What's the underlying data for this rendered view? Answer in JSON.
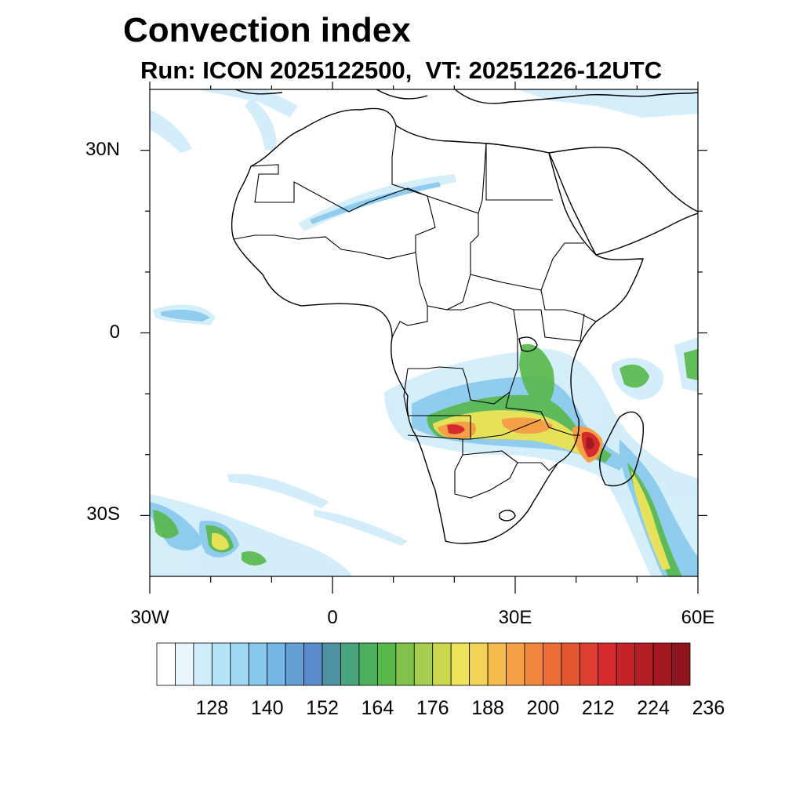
{
  "title": "Convection index",
  "subtitle": "Run: ICON 2025122500,  VT: 20251226-12UTC",
  "map": {
    "lon_range": [
      -30,
      60
    ],
    "lat_range": [
      -40,
      40
    ],
    "lat_ticks": [
      {
        "value": 30,
        "label": "30N"
      },
      {
        "value": 0,
        "label": "0"
      },
      {
        "value": -30,
        "label": "30S"
      }
    ],
    "lon_ticks": [
      {
        "value": -30,
        "label": "30W"
      },
      {
        "value": 0,
        "label": "0"
      },
      {
        "value": 30,
        "label": "30E"
      },
      {
        "value": 60,
        "label": "60E"
      }
    ],
    "colors": {
      "coast": "#000000",
      "background": "#ffffff"
    }
  },
  "colorbar": {
    "min": 116,
    "step": 4,
    "labels": [
      "128",
      "140",
      "152",
      "164",
      "176",
      "188",
      "200",
      "212",
      "224",
      "236"
    ],
    "colors": [
      "#ffffff",
      "#e8f6fc",
      "#cfedfa",
      "#b5e3f8",
      "#9ed8f3",
      "#87c8ec",
      "#76b6e4",
      "#649fd6",
      "#5a8ccc",
      "#4b92a4",
      "#49a57e",
      "#4db05e",
      "#58b84a",
      "#80c24a",
      "#a6cd4d",
      "#cbd84f",
      "#ece45a",
      "#f4d257",
      "#f5bb4f",
      "#f5a046",
      "#f1873d",
      "#ec6e36",
      "#e35632",
      "#dd3e2f",
      "#d52b2c",
      "#c62229",
      "#b51d25",
      "#a31821",
      "#8f141d"
    ]
  },
  "chart_data": {
    "type": "heatmap",
    "title": "Convection index",
    "subtitle": "Run: ICON 2025122500,  VT: 20251226-12UTC",
    "xlim": [
      -30,
      60
    ],
    "ylim": [
      -40,
      40
    ],
    "x_ticks": [
      "30W",
      "0",
      "30E",
      "60E"
    ],
    "y_ticks": [
      "30N",
      "0",
      "30S"
    ],
    "colorbar_levels": [
      116,
      120,
      124,
      128,
      132,
      136,
      140,
      144,
      148,
      152,
      156,
      160,
      164,
      168,
      172,
      176,
      180,
      184,
      188,
      192,
      196,
      200,
      204,
      208,
      212,
      216,
      220,
      224,
      228,
      232,
      236
    ],
    "features": [
      {
        "name": "southern Africa convection band",
        "lon": [
          13,
          42
        ],
        "lat": [
          -7,
          -20
        ],
        "max_level": 212
      },
      {
        "name": "Mozambique channel / Madagascar",
        "lon": [
          38,
          50
        ],
        "lat": [
          -15,
          -25
        ],
        "max_level": 236
      },
      {
        "name": "east of Madagascar plume",
        "lon": [
          47,
          60
        ],
        "lat": [
          -18,
          -40
        ],
        "max_level": 200
      },
      {
        "name": "South Atlantic cells",
        "lon": [
          -30,
          -12
        ],
        "lat": [
          -29,
          -38
        ],
        "max_level": 180
      },
      {
        "name": "Sahara streak",
        "lon": [
          -5,
          20
        ],
        "lat": [
          18,
          26
        ],
        "max_level": 150
      },
      {
        "name": "Atlantic equatorial patch",
        "lon": [
          -30,
          -20
        ],
        "lat": [
          2,
          4
        ],
        "max_level": 150
      }
    ]
  }
}
